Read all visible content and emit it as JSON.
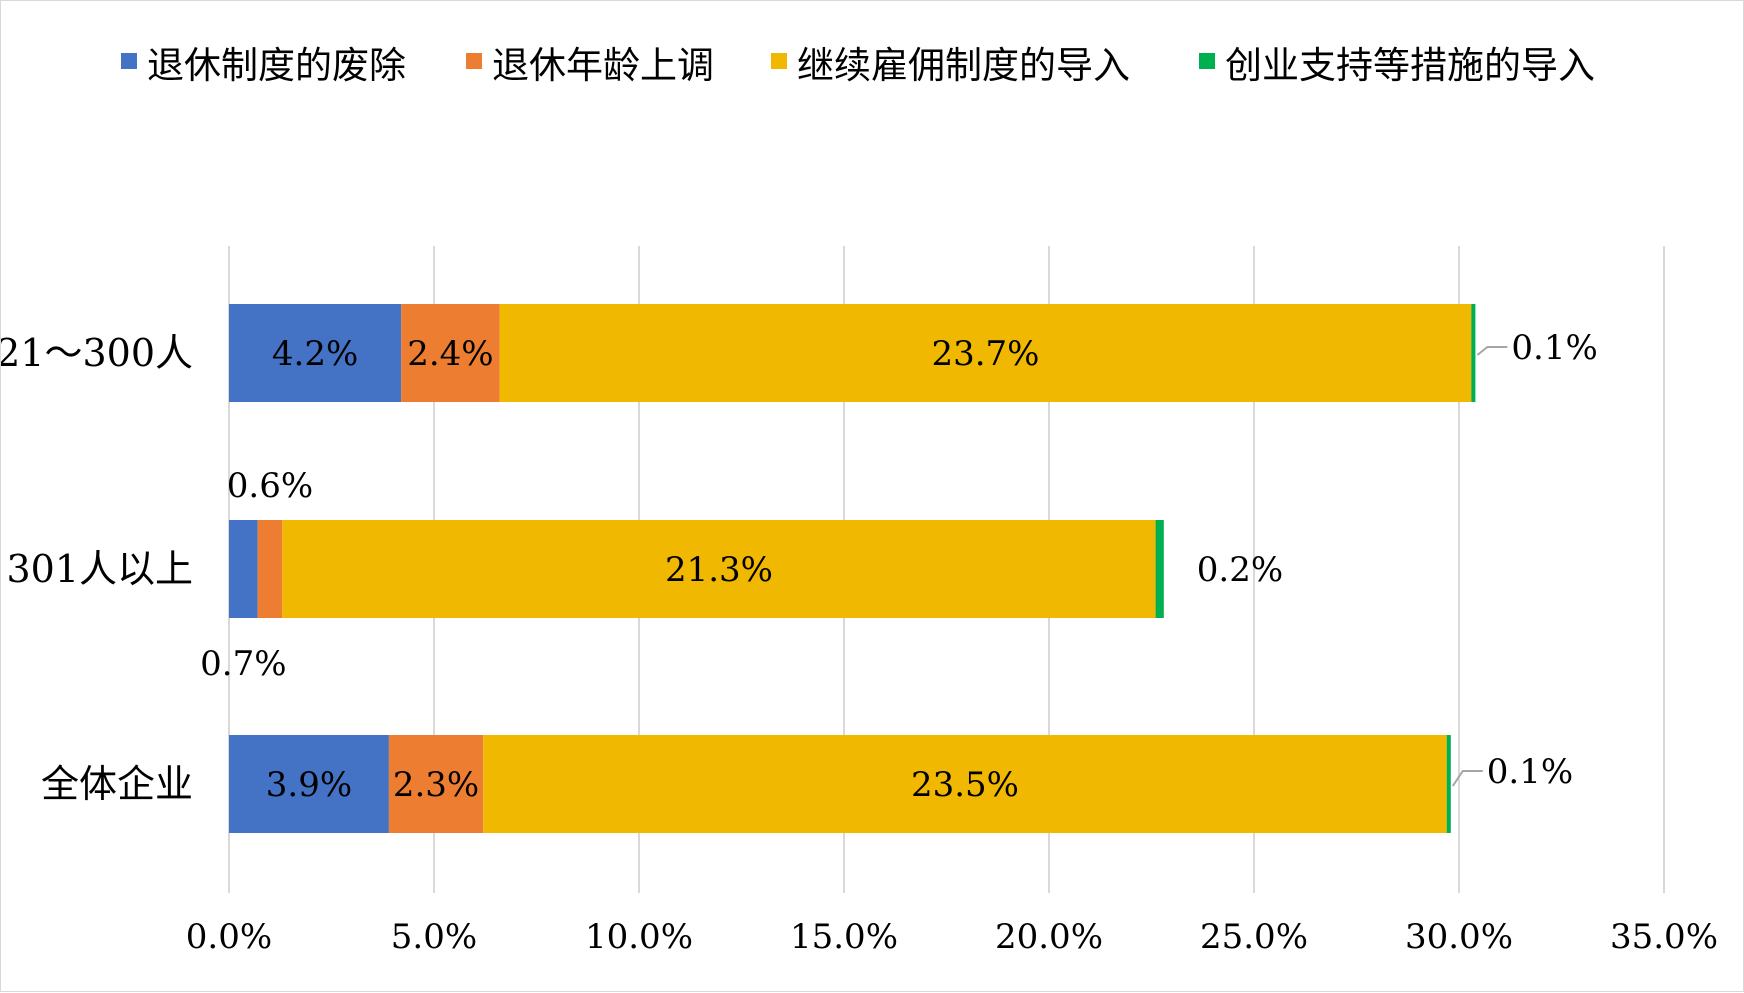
{
  "chart_data": {
    "type": "bar",
    "orientation": "horizontal",
    "stacked": true,
    "categories": [
      "21～300人",
      "301人以上",
      "全体企业"
    ],
    "series": [
      {
        "name": "退休制度的废除",
        "color": "#4472C4",
        "values": [
          4.2,
          0.7,
          3.9
        ],
        "labels": [
          "4.2%",
          "0.7%",
          "3.9%"
        ]
      },
      {
        "name": "退休年龄上调",
        "color": "#ED7D31",
        "values": [
          2.4,
          0.6,
          2.3
        ],
        "labels": [
          "2.4%",
          "0.6%",
          "2.3%"
        ]
      },
      {
        "name": "继续雇佣制度的导入",
        "color": "#F0B800",
        "values": [
          23.7,
          21.3,
          23.5
        ],
        "labels": [
          "23.7%",
          "21.3%",
          "23.5%"
        ]
      },
      {
        "name": "创业支持等措施的导入",
        "color": "#00B050",
        "values": [
          0.1,
          0.2,
          0.1
        ],
        "labels": [
          "0.1%",
          "0.2%",
          "0.1%"
        ]
      }
    ],
    "xlim": [
      0,
      35
    ],
    "xticks": [
      0,
      5,
      10,
      15,
      20,
      25,
      30,
      35
    ],
    "xtick_labels": [
      "0.0%",
      "5.0%",
      "10.0%",
      "15.0%",
      "20.0%",
      "25.0%",
      "30.0%",
      "35.0%"
    ],
    "grid": "vertical",
    "legend": "top",
    "title": "",
    "xlabel": "",
    "ylabel": ""
  }
}
